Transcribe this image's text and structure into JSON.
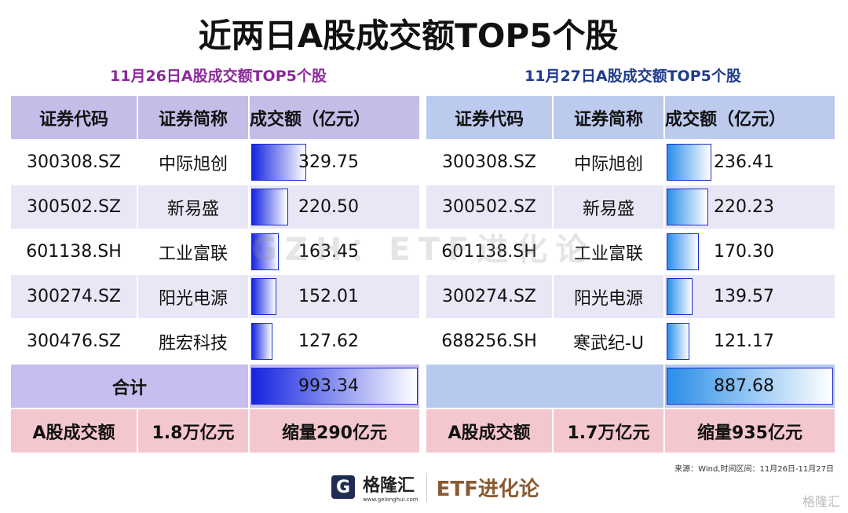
{
  "title": "近两日A股成交额TOP5个股",
  "headers": [
    "证券代码",
    "证券简称",
    "成交额（亿元）"
  ],
  "left": {
    "subtitle": "11月26日A股成交额TOP5个股",
    "subtitle_color": "#8a2a9a",
    "max": 993.34,
    "rows": [
      {
        "code": "300308.SZ",
        "name": "中际旭创",
        "amount": "329.75",
        "value": 329.75
      },
      {
        "code": "300502.SZ",
        "name": "新易盛",
        "amount": "220.50",
        "value": 220.5
      },
      {
        "code": "601138.SH",
        "name": "工业富联",
        "amount": "163.45",
        "value": 163.45
      },
      {
        "code": "300274.SZ",
        "name": "阳光电源",
        "amount": "152.01",
        "value": 152.01
      },
      {
        "code": "300476.SZ",
        "name": "胜宏科技",
        "amount": "127.62",
        "value": 127.62
      }
    ],
    "total_label": "合计",
    "total": "993.34",
    "total_value": 993.34,
    "bottom": [
      "A股成交额",
      "1.8万亿元",
      "缩量290亿元"
    ]
  },
  "right": {
    "subtitle": "11月27日A股成交额TOP5个股",
    "subtitle_color": "#1f3c8a",
    "max": 887.68,
    "rows": [
      {
        "code": "300308.SZ",
        "name": "中际旭创",
        "amount": "236.41",
        "value": 236.41
      },
      {
        "code": "300502.SZ",
        "name": "新易盛",
        "amount": "220.23",
        "value": 220.23
      },
      {
        "code": "601138.SH",
        "name": "工业富联",
        "amount": "170.30",
        "value": 170.3
      },
      {
        "code": "300274.SZ",
        "name": "阳光电源",
        "amount": "139.57",
        "value": 139.57
      },
      {
        "code": "688256.SH",
        "name": "寒武纪-U",
        "amount": "121.17",
        "value": 121.17
      }
    ],
    "total_label": "",
    "total": "887.68",
    "total_value": 887.68,
    "bottom": [
      "A股成交额",
      "1.7万亿元",
      "缩量935亿元"
    ]
  },
  "watermark": "GZH：ETF进化论",
  "source": "来源：Wind,时间区间：11月26日-11月27日",
  "footer": {
    "brand": "格隆汇",
    "url": "www.gelonghui.com",
    "etf": "ETF进化论",
    "corner": "格隆汇"
  }
}
